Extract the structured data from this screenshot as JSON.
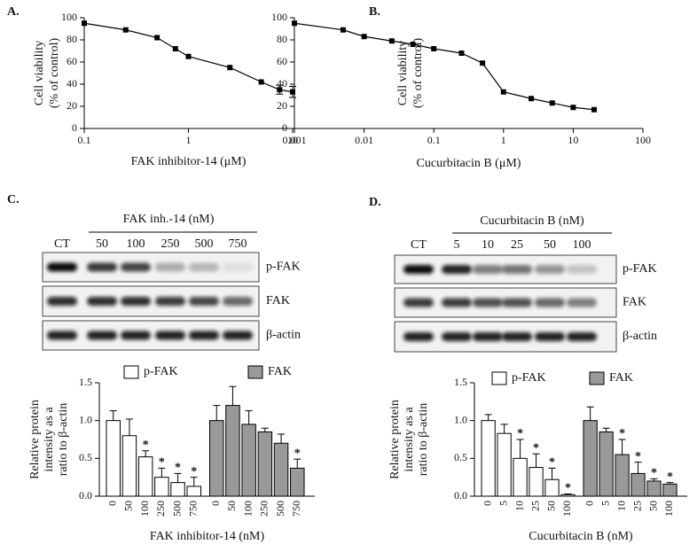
{
  "chart_data": [
    {
      "type": "line",
      "panel": "A.",
      "ylabel": [
        "Cell viability",
        "(% of control)"
      ],
      "xlabel": "FAK inhibitor-14 (μM)",
      "xscale": "log",
      "color": "#000000",
      "x": [
        0.1,
        0.25,
        0.5,
        0.75,
        1,
        2.5,
        5,
        7.5,
        10
      ],
      "values": [
        95,
        89,
        82,
        72,
        65,
        55,
        42,
        35,
        33
      ],
      "errors": [
        null,
        null,
        null,
        null,
        null,
        null,
        null,
        4,
        5
      ],
      "xlim": [
        0.1,
        10
      ],
      "xticks": [
        0.1,
        1,
        10
      ],
      "ylim": [
        0,
        100
      ],
      "yticks": [
        0,
        20,
        40,
        60,
        80,
        100
      ]
    },
    {
      "type": "line",
      "panel": "B.",
      "ylabel": [
        "Cell viability",
        "(% of control)"
      ],
      "xlabel": "Cucurbitacin B (μM)",
      "xscale": "log",
      "color": "#000000",
      "x": [
        0.001,
        0.005,
        0.01,
        0.025,
        0.05,
        0.1,
        0.25,
        0.5,
        1,
        2.5,
        5,
        10,
        20
      ],
      "values": [
        95,
        89,
        83,
        79,
        76,
        72,
        68,
        59,
        33,
        27,
        23,
        19,
        17
      ],
      "errors": [
        null,
        null,
        null,
        null,
        null,
        null,
        null,
        null,
        null,
        null,
        null,
        null,
        null
      ],
      "xlim": [
        0.001,
        100
      ],
      "xticks": [
        0.001,
        0.01,
        0.1,
        1,
        10,
        100
      ],
      "ylim": [
        0,
        100
      ],
      "yticks": [
        0,
        20,
        40,
        60,
        80,
        100
      ]
    },
    {
      "type": "bar",
      "panel": "C.",
      "blot": {
        "title": "FAK inh.-14 (nM)",
        "lanes": [
          "CT",
          "50",
          "100",
          "250",
          "500",
          "750"
        ],
        "rows": [
          "p-FAK",
          "FAK",
          "β-actin"
        ]
      },
      "ylabel": [
        "Relative protein",
        "intensity as a",
        "ratio to β-actin"
      ],
      "xlabel": "FAK inhibitor-14 (nM)",
      "categories": [
        "0",
        "50",
        "100",
        "250",
        "500",
        "750"
      ],
      "series": [
        {
          "name": "p-FAK",
          "color": "#ffffff",
          "values": [
            1.0,
            0.8,
            0.52,
            0.25,
            0.18,
            0.13
          ],
          "errors": [
            0.13,
            0.22,
            0.08,
            0.12,
            0.12,
            0.12
          ],
          "stars": [
            null,
            null,
            "*",
            "*",
            "*",
            "*"
          ]
        },
        {
          "name": "FAK",
          "color": "#999999",
          "values": [
            1.0,
            1.2,
            0.95,
            0.85,
            0.7,
            0.37
          ],
          "errors": [
            0.2,
            0.25,
            0.18,
            0.05,
            0.12,
            0.12
          ],
          "stars": [
            null,
            null,
            null,
            null,
            null,
            "*"
          ]
        }
      ],
      "ylim": [
        0,
        1.5
      ],
      "yticks": [
        {
          "value": 0,
          "label": "0.0"
        },
        {
          "value": 0.5,
          "label": "0.5"
        },
        {
          "value": 1,
          "label": "1.0"
        },
        {
          "value": 1.5,
          "label": "1.5"
        }
      ]
    },
    {
      "type": "bar",
      "panel": "D.",
      "blot": {
        "title": "Cucurbitacin B (nM)",
        "lanes": [
          "CT",
          "5",
          "10",
          "25",
          "50",
          "100"
        ],
        "rows": [
          "p-FAK",
          "FAK",
          "β-actin"
        ]
      },
      "ylabel": [
        "Relative protein",
        "intensity as a",
        "ratio to β-actin"
      ],
      "xlabel": "Cucurbitacin B (nM)",
      "categories": [
        "0",
        "5",
        "10",
        "25",
        "50",
        "100"
      ],
      "series": [
        {
          "name": "p-FAK",
          "color": "#ffffff",
          "values": [
            1.0,
            0.83,
            0.5,
            0.38,
            0.22,
            0.02
          ],
          "errors": [
            0.08,
            0.12,
            0.25,
            0.18,
            0.15,
            0.01
          ],
          "stars": [
            null,
            null,
            "*",
            "*",
            "*",
            "*"
          ]
        },
        {
          "name": "FAK",
          "color": "#999999",
          "values": [
            1.0,
            0.85,
            0.55,
            0.3,
            0.2,
            0.16
          ],
          "errors": [
            0.18,
            0.05,
            0.2,
            0.15,
            0.03,
            0.02
          ],
          "stars": [
            null,
            null,
            "*",
            "*",
            "*",
            "*"
          ]
        }
      ],
      "ylim": [
        0,
        1.5
      ],
      "yticks": [
        {
          "value": 0,
          "label": "0.0"
        },
        {
          "value": 0.5,
          "label": "0.5"
        },
        {
          "value": 1,
          "label": "1.0"
        },
        {
          "value": 1.5,
          "label": "1.5"
        }
      ]
    }
  ]
}
